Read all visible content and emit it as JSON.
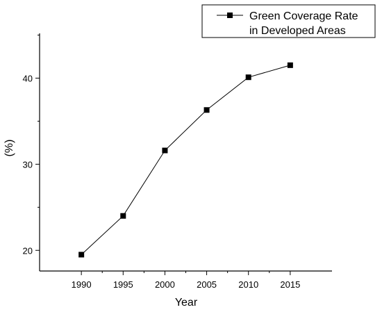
{
  "chart_data": {
    "type": "line",
    "title": "",
    "xlabel": "Year",
    "ylabel": "(%)",
    "x": [
      1990,
      1995,
      2000,
      2005,
      2010,
      2015
    ],
    "series": [
      {
        "name": "Green Coverage Rate in Developed Areas",
        "name_lines": [
          "Green Coverage Rate",
          "in Developed Areas"
        ],
        "values": [
          19.5,
          24.0,
          31.6,
          36.3,
          40.1,
          41.5
        ],
        "color": "#000000",
        "marker": "square"
      }
    ],
    "xlim": [
      1985,
      2020
    ],
    "ylim": [
      17.6,
      45.2
    ],
    "xticks": [
      1990,
      1995,
      2000,
      2005,
      2010,
      2015
    ],
    "yticks": [
      20,
      30,
      40
    ],
    "grid": false,
    "legend_position": "top-right"
  }
}
